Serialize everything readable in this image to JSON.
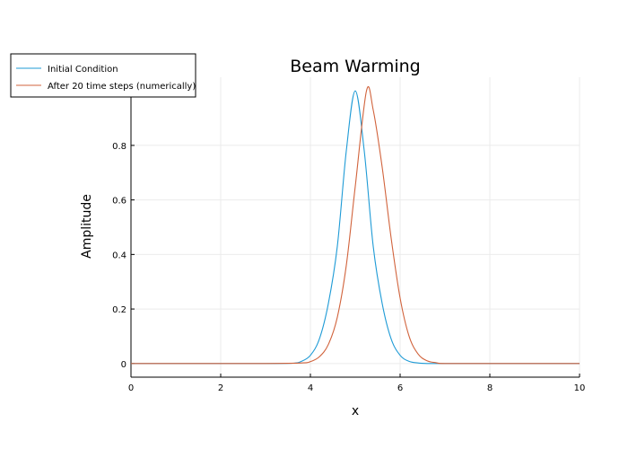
{
  "chart_data": {
    "type": "line",
    "title": "Beam Warming",
    "xlabel": "x",
    "ylabel": "Amplitude",
    "xlim": [
      0,
      10
    ],
    "ylim": [
      -0.05,
      1.05
    ],
    "xticks": [
      0,
      2,
      4,
      6,
      8,
      10
    ],
    "yticks": [
      0,
      0.2,
      0.4,
      0.6,
      0.8
    ],
    "xtick_labels": [
      "0",
      "2",
      "4",
      "6",
      "8",
      "10"
    ],
    "ytick_labels": [
      "0",
      "0.2",
      "0.4",
      "0.6",
      "0.8"
    ],
    "grid": true,
    "legend_position": "top-left",
    "series": [
      {
        "name": "Initial Condition",
        "color": "#1f9bd6",
        "x": [
          0,
          1,
          2,
          3,
          3.6,
          3.8,
          4.0,
          4.2,
          4.4,
          4.6,
          4.8,
          5.0,
          5.2,
          5.4,
          5.6,
          5.8,
          6.0,
          6.2,
          6.4,
          6.6,
          7.0,
          8,
          9,
          10
        ],
        "y": [
          0,
          0,
          0,
          0,
          0.001,
          0.008,
          0.03,
          0.09,
          0.22,
          0.43,
          0.78,
          1.0,
          0.78,
          0.43,
          0.22,
          0.09,
          0.03,
          0.008,
          0.002,
          0,
          0,
          0,
          0,
          0
        ]
      },
      {
        "name": "After 20 time steps (numerically)",
        "color": "#d1633c",
        "x": [
          0,
          1,
          2,
          3,
          3.8,
          4.0,
          4.2,
          4.4,
          4.6,
          4.8,
          5.0,
          5.25,
          5.4,
          5.6,
          5.8,
          6.0,
          6.2,
          6.4,
          6.6,
          6.8,
          7.0,
          8,
          9,
          10
        ],
        "y": [
          0,
          0,
          0,
          0,
          0.002,
          0.007,
          0.025,
          0.07,
          0.17,
          0.36,
          0.65,
          1.0,
          0.93,
          0.72,
          0.46,
          0.24,
          0.1,
          0.035,
          0.01,
          0.003,
          0,
          0,
          0,
          0
        ]
      }
    ]
  }
}
